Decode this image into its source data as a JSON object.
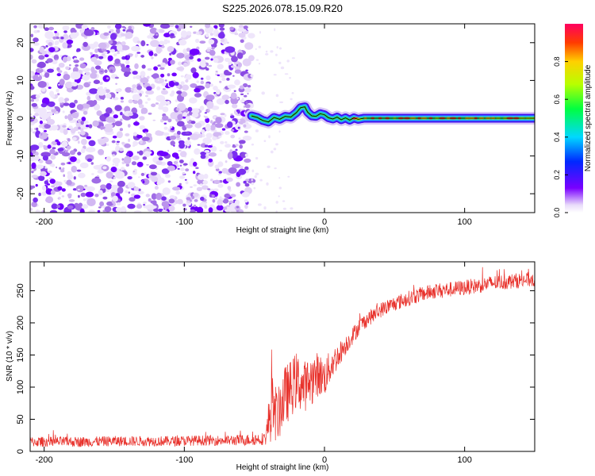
{
  "title": "S225.2026.078.15.09.R20",
  "chart_data": [
    {
      "type": "heatmap",
      "name": "spectrogram",
      "xlabel": "Height of straight line (km)",
      "ylabel": "Frequency (Hz)",
      "xlim": [
        -210,
        150
      ],
      "ylim": [
        -25,
        25
      ],
      "xticks": [
        -200,
        -100,
        0,
        100
      ],
      "yticks": [
        -20,
        -10,
        0,
        10,
        20
      ],
      "colorbar": {
        "label": "Normalized spectral amplitude",
        "range": [
          0,
          1
        ],
        "ticks": [
          0.0,
          0.2,
          0.4,
          0.6,
          0.8
        ],
        "tick_labels": [
          "0.0",
          "0.2",
          "0.4",
          "0.6",
          "0.8"
        ]
      },
      "noise_region_x": [
        -210,
        -52
      ],
      "signal_start_x": -52,
      "signal_track": [
        {
          "x": -52,
          "y": 0.6
        },
        {
          "x": -48,
          "y": 0.2
        },
        {
          "x": -44,
          "y": -0.6
        },
        {
          "x": -40,
          "y": -1.0
        },
        {
          "x": -36,
          "y": 0.2
        },
        {
          "x": -32,
          "y": -0.3
        },
        {
          "x": -28,
          "y": 0.5
        },
        {
          "x": -24,
          "y": 0.3
        },
        {
          "x": -20,
          "y": 1.5
        },
        {
          "x": -17,
          "y": 2.8
        },
        {
          "x": -14,
          "y": 3.0
        },
        {
          "x": -12,
          "y": 1.6
        },
        {
          "x": -9,
          "y": 0.6
        },
        {
          "x": -6,
          "y": 0.5
        },
        {
          "x": -3,
          "y": 1.2
        },
        {
          "x": 0,
          "y": 0.9
        },
        {
          "x": 3,
          "y": 0.1
        },
        {
          "x": 6,
          "y": -0.2
        },
        {
          "x": 9,
          "y": 0.3
        },
        {
          "x": 12,
          "y": -0.4
        },
        {
          "x": 15,
          "y": 0.1
        },
        {
          "x": 18,
          "y": -0.5
        },
        {
          "x": 21,
          "y": 0.1
        },
        {
          "x": 24,
          "y": -0.3
        },
        {
          "x": 28,
          "y": 0.0
        },
        {
          "x": 40,
          "y": 0.0
        },
        {
          "x": 60,
          "y": 0.0
        },
        {
          "x": 80,
          "y": 0.0
        },
        {
          "x": 100,
          "y": 0.0
        },
        {
          "x": 120,
          "y": 0.0
        },
        {
          "x": 150,
          "y": 0.0
        }
      ]
    },
    {
      "type": "line",
      "name": "snr",
      "xlabel": "Height of straight line (km)",
      "ylabel": "SNR (10 * v/v)",
      "xlim": [
        -210,
        150
      ],
      "ylim": [
        0,
        295
      ],
      "xticks": [
        -200,
        -100,
        0,
        100
      ],
      "yticks": [
        0,
        50,
        100,
        150,
        200,
        250
      ],
      "color": "#e8312b",
      "series": [
        {
          "name": "SNR",
          "x": [
            -210,
            -190,
            -170,
            -150,
            -130,
            -110,
            -90,
            -70,
            -55,
            -42,
            -38,
            -35,
            -33,
            -30,
            -25,
            -20,
            -15,
            -10,
            -5,
            0,
            5,
            10,
            15,
            20,
            25,
            30,
            35,
            40,
            45,
            50,
            60,
            70,
            80,
            90,
            100,
            110,
            120,
            130,
            140,
            150
          ],
          "y": [
            15,
            15,
            15,
            16,
            16,
            16,
            17,
            17,
            18,
            20,
            70,
            60,
            55,
            80,
            95,
            110,
            100,
            110,
            120,
            115,
            135,
            150,
            165,
            180,
            195,
            205,
            212,
            220,
            225,
            230,
            238,
            245,
            250,
            252,
            255,
            258,
            262,
            264,
            266,
            268
          ],
          "noise": [
            8,
            8,
            8,
            8,
            8,
            8,
            8,
            8,
            9,
            10,
            55,
            45,
            40,
            50,
            45,
            45,
            40,
            40,
            35,
            30,
            25,
            20,
            15,
            14,
            13,
            12,
            12,
            12,
            12,
            12,
            12,
            12,
            12,
            12,
            12,
            12,
            12,
            12,
            12,
            12
          ]
        }
      ]
    }
  ]
}
